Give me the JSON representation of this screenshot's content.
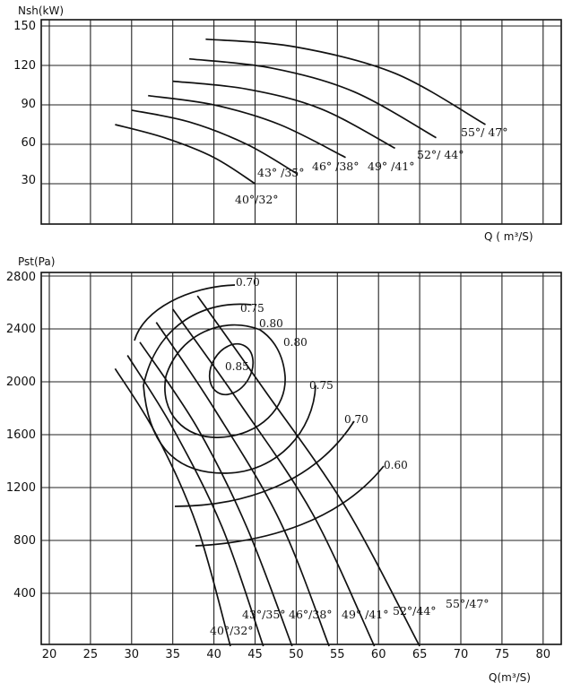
{
  "chart_data": [
    {
      "type": "line",
      "ylabel": "Nsh(kW)",
      "xlabel": "Q ( m³/S)",
      "xlim": [
        20,
        85
      ],
      "ylim": [
        0,
        150
      ],
      "ytick_labels": [
        "150",
        "120",
        "90",
        "60",
        "30"
      ],
      "yticks": [
        150,
        120,
        90,
        60,
        30
      ],
      "grid": true,
      "series": [
        {
          "name": "40°/32°",
          "x": [
            28,
            34,
            40,
            45
          ],
          "y": [
            75,
            65,
            50,
            30
          ]
        },
        {
          "name": "43°/35°",
          "x": [
            30,
            37,
            44,
            50
          ],
          "y": [
            86,
            77,
            60,
            38
          ]
        },
        {
          "name": "46°/38°",
          "x": [
            32,
            40,
            48,
            56
          ],
          "y": [
            97,
            90,
            75,
            50
          ]
        },
        {
          "name": "49°/41°",
          "x": [
            35,
            44,
            53,
            62
          ],
          "y": [
            108,
            102,
            87,
            57
          ]
        },
        {
          "name": "52°/44°",
          "x": [
            37,
            47,
            57,
            67
          ],
          "y": [
            125,
            118,
            100,
            65
          ]
        },
        {
          "name": "55°/47°",
          "x": [
            39,
            50,
            62,
            73
          ],
          "y": [
            140,
            134,
            114,
            75
          ]
        }
      ]
    },
    {
      "type": "line",
      "ylabel": "Pst(Pa)",
      "xlabel": "Q(m³/S)",
      "xlim": [
        20,
        85
      ],
      "ylim": [
        0,
        2800
      ],
      "xticks": [
        20,
        25,
        30,
        35,
        40,
        45,
        50,
        55,
        60,
        65,
        70,
        75,
        80
      ],
      "xtick_labels": [
        "20",
        "25",
        "30",
        "35",
        "40",
        "45",
        "50",
        "55",
        "60",
        "65",
        "70",
        "75",
        "80"
      ],
      "yticks": [
        2800,
        2400,
        2000,
        1600,
        1200,
        800,
        400
      ],
      "ytick_labels": [
        "2800",
        "2400",
        "2000",
        "1600",
        "1200",
        "800",
        "400"
      ],
      "grid": true,
      "series": [
        {
          "name": "40°/32°",
          "x": [
            28,
            33,
            38,
            42
          ],
          "y": [
            2100,
            1600,
            900,
            0
          ]
        },
        {
          "name": "43°/35°",
          "x": [
            29.5,
            35,
            41,
            46
          ],
          "y": [
            2200,
            1650,
            900,
            0
          ]
        },
        {
          "name": "46°/38°",
          "x": [
            31,
            38,
            44,
            49.5
          ],
          "y": [
            2300,
            1650,
            900,
            0
          ]
        },
        {
          "name": "49°/41°",
          "x": [
            33,
            40,
            48,
            54
          ],
          "y": [
            2450,
            1800,
            950,
            0
          ]
        },
        {
          "name": "52°/44°",
          "x": [
            35,
            43,
            52,
            59.5
          ],
          "y": [
            2550,
            1850,
            1000,
            0
          ]
        },
        {
          "name": "55°/47°",
          "x": [
            38,
            46,
            56,
            65
          ],
          "y": [
            2650,
            1950,
            1050,
            0
          ]
        }
      ],
      "efficiency_labels": [
        "0.70",
        "0.75",
        "0.80",
        "0.80",
        "0.85",
        "0.75",
        "0.70",
        "0.60"
      ]
    }
  ],
  "top": {
    "ylabel": "Nsh(kW)",
    "xlabel": "Q ( m³/S)",
    "ticks": [
      "150",
      "120",
      "90",
      "60",
      "30"
    ],
    "curve_labels": [
      "40°/32°",
      "43° /35°",
      "46° /38°",
      "49° /41°",
      "52°/ 44°",
      "55°/ 47°"
    ]
  },
  "bottom": {
    "ylabel": "Pst(Pa)",
    "xlabel": "Q(m³/S)",
    "yticks": [
      "2800",
      "2400",
      "2000",
      "1600",
      "1200",
      "800",
      "400"
    ],
    "xticks": [
      "20",
      "25",
      "30",
      "35",
      "40",
      "45",
      "50",
      "55",
      "60",
      "65",
      "70",
      "75",
      "80"
    ],
    "curve_labels": [
      "40°/32°",
      "43°/35°",
      "46°/38°",
      "49° /41°",
      "52°/44°",
      "55°/47°"
    ],
    "eff_labels": [
      "0.70",
      "0.75",
      "0.80",
      "0.80",
      "0.85",
      "0.75",
      "0.70",
      "0.60"
    ]
  }
}
